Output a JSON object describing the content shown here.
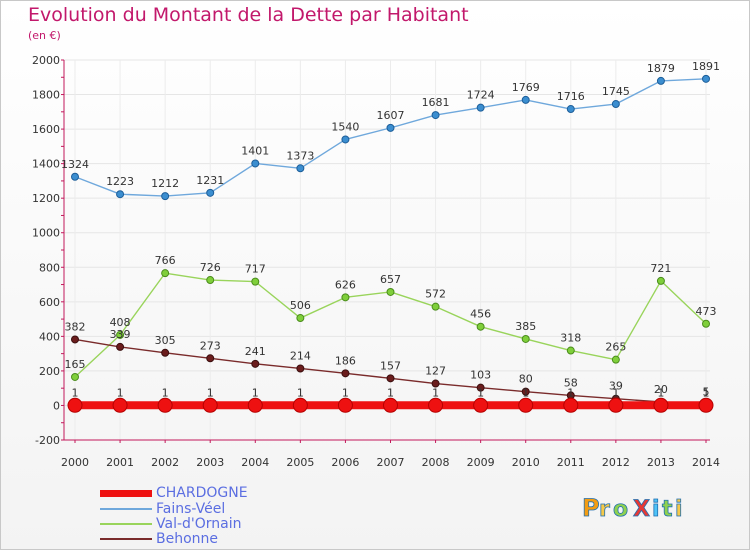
{
  "title": "Evolution du Montant de la Dette par Habitant",
  "subtitle": "(en €)",
  "logo_text": "ProXiti",
  "colors": {
    "title": "#c2186b",
    "legend_text": "#5b6ee1",
    "axis": "#c2185b",
    "grid": "#e6e6e6"
  },
  "chart_data": {
    "type": "line",
    "x": [
      2000,
      2001,
      2002,
      2003,
      2004,
      2005,
      2006,
      2007,
      2008,
      2009,
      2010,
      2011,
      2012,
      2013,
      2014
    ],
    "ylim": [
      -200,
      2000
    ],
    "yticks": [
      -200,
      0,
      200,
      400,
      600,
      800,
      1000,
      1200,
      1400,
      1600,
      1800,
      2000
    ],
    "grid": true,
    "legend_position": "bottom-left",
    "series": [
      {
        "name": "CHARDOGNE",
        "color": "#ee1111",
        "values": [
          1,
          1,
          1,
          1,
          1,
          1,
          1,
          1,
          1,
          1,
          1,
          1,
          1,
          1,
          1
        ]
      },
      {
        "name": "Fains-Véel",
        "color": "#6fa8dc",
        "values": [
          1324,
          1223,
          1212,
          1231,
          1401,
          1373,
          1540,
          1607,
          1681,
          1724,
          1769,
          1716,
          1745,
          1879,
          1891
        ]
      },
      {
        "name": "Val-d'Ornain",
        "color": "#99d45b",
        "values": [
          165,
          408,
          766,
          726,
          717,
          506,
          626,
          657,
          572,
          456,
          385,
          318,
          265,
          721,
          473
        ]
      },
      {
        "name": "Behonne",
        "color": "#7a2b2b",
        "values": [
          382,
          339,
          305,
          273,
          241,
          214,
          186,
          157,
          127,
          103,
          80,
          58,
          39,
          20,
          5
        ]
      }
    ]
  }
}
